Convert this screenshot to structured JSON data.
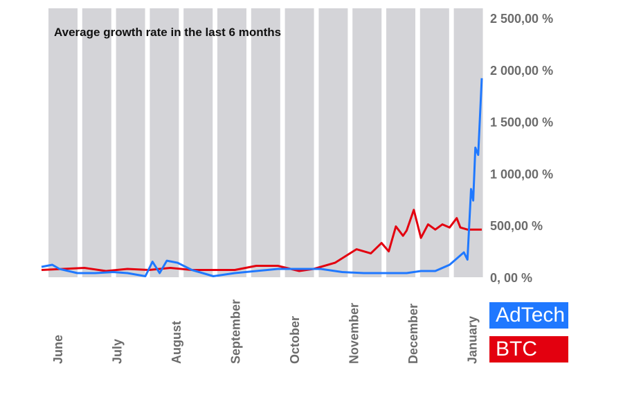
{
  "chart_data": {
    "type": "line",
    "title": "Average growth rate in the last 6 months",
    "xlabel": "",
    "ylabel": "",
    "ylim": [
      0,
      2500
    ],
    "y_tick_labels": [
      "0, 00 %",
      "500,00 %",
      "1 000,00 %",
      "1 500,00 %",
      "2 000,00 %",
      "2 500,00 %"
    ],
    "y_tick_values": [
      0,
      500,
      1000,
      1500,
      2000,
      2500
    ],
    "x_range": [
      0,
      6.15
    ],
    "month_labels": [
      "June",
      "July",
      "August",
      "September",
      "October",
      "November",
      "December",
      "January"
    ],
    "month_positions": [
      0.1,
      1.0,
      1.9,
      2.8,
      3.7,
      4.6,
      5.5,
      6.4
    ],
    "grid": "vertical gray bands",
    "legend_placement": "bottom-right",
    "series": [
      {
        "name": "AdTech",
        "color": "#1f78ff",
        "x": [
          0,
          0.15,
          0.25,
          0.5,
          0.75,
          1.0,
          1.2,
          1.45,
          1.55,
          1.65,
          1.75,
          1.9,
          2.1,
          2.4,
          2.7,
          3.0,
          3.3,
          3.6,
          3.9,
          4.2,
          4.5,
          4.8,
          5.1,
          5.3,
          5.5,
          5.7,
          5.9,
          5.95,
          6.0,
          6.03,
          6.06,
          6.1,
          6.15
        ],
        "values": [
          100,
          120,
          80,
          40,
          40,
          50,
          40,
          10,
          150,
          40,
          160,
          140,
          70,
          10,
          40,
          60,
          80,
          80,
          80,
          50,
          40,
          40,
          40,
          60,
          60,
          120,
          240,
          170,
          850,
          740,
          1250,
          1180,
          1920
        ]
      },
      {
        "name": "BTC",
        "color": "#e3000f",
        "x": [
          0,
          0.3,
          0.6,
          0.9,
          1.2,
          1.5,
          1.8,
          2.1,
          2.4,
          2.7,
          3.0,
          3.3,
          3.6,
          3.8,
          4.1,
          4.4,
          4.6,
          4.75,
          4.85,
          4.95,
          5.05,
          5.1,
          5.2,
          5.3,
          5.4,
          5.5,
          5.6,
          5.7,
          5.8,
          5.85,
          5.95,
          6.0,
          6.05,
          6.15
        ],
        "values": [
          70,
          80,
          90,
          60,
          80,
          70,
          90,
          70,
          70,
          70,
          110,
          110,
          60,
          80,
          140,
          270,
          230,
          330,
          250,
          490,
          400,
          450,
          650,
          380,
          510,
          460,
          510,
          480,
          570,
          480,
          460,
          460,
          460,
          460
        ]
      }
    ]
  }
}
